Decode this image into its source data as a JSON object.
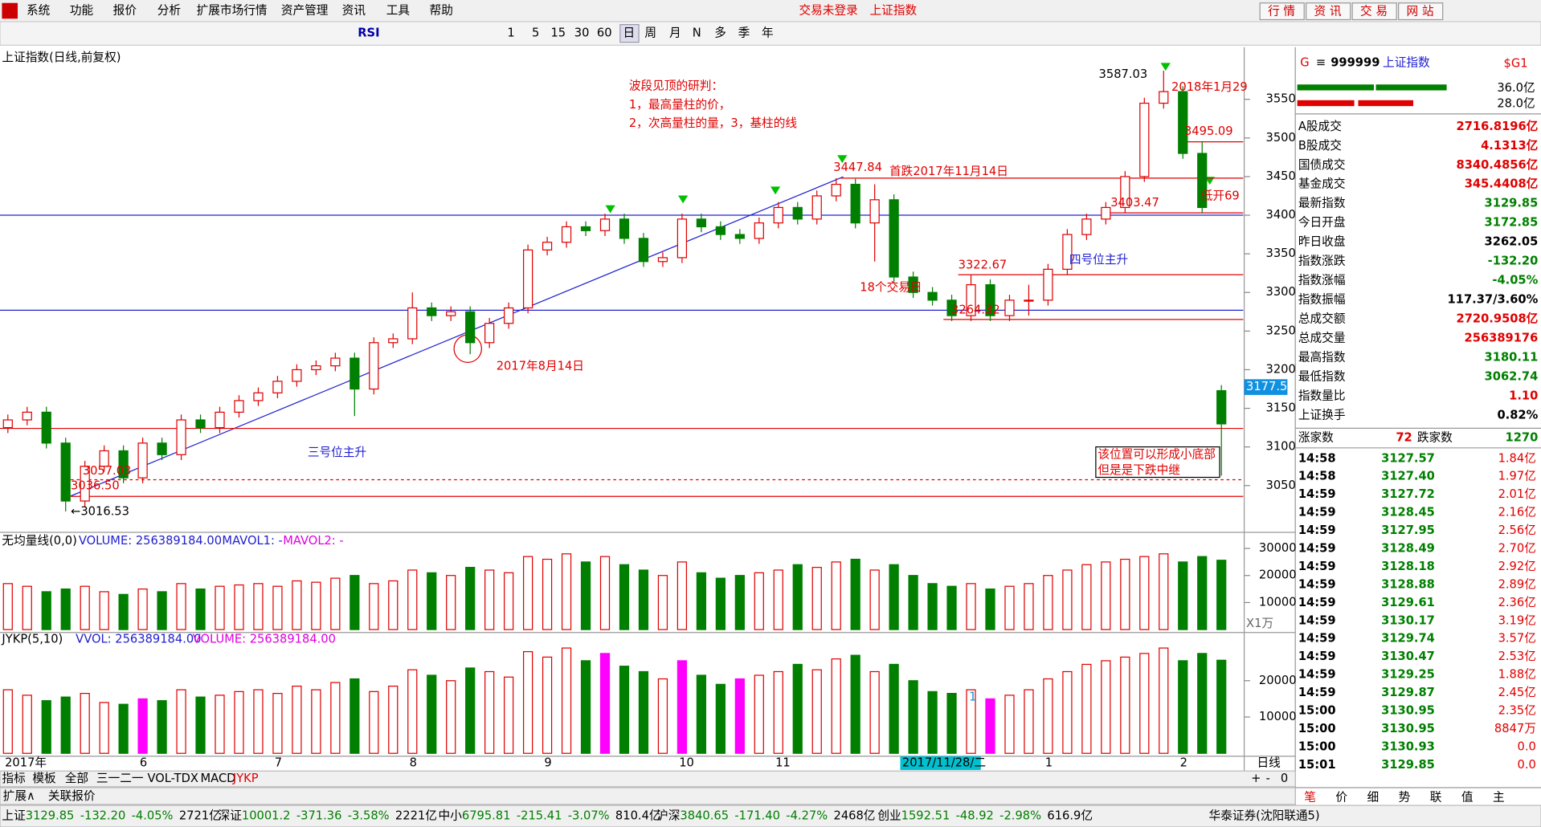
{
  "app": {
    "menu": [
      "系统",
      "功能",
      "报价",
      "分析",
      "扩展市场行情",
      "资产管理",
      "资讯",
      "工具",
      "帮助"
    ],
    "login_status": "交易未登录",
    "active_symbol": "上证指数",
    "top_buttons": [
      "行 情",
      "资 讯",
      "交 易",
      "网 站"
    ],
    "toolbar_label": "RSI",
    "periods": [
      "1",
      "5",
      "15",
      "30",
      "60",
      "日",
      "周",
      "月",
      "N",
      "多",
      "季",
      "年"
    ]
  },
  "chart_data": {
    "type": "candlestick",
    "title": "上证指数(日线,前复权)",
    "ylim": [
      2992,
      3615
    ],
    "yticks": [
      3050,
      3100,
      3150,
      3200,
      3250,
      3300,
      3350,
      3400,
      3450,
      3500,
      3550
    ],
    "up_color": "#e00000",
    "down_color": "#007f00",
    "categories": [
      "2017年",
      null,
      null,
      null,
      null,
      null,
      null,
      "6",
      null,
      null,
      null,
      null,
      null,
      null,
      "7",
      null,
      null,
      null,
      null,
      null,
      null,
      "8",
      null,
      null,
      null,
      null,
      null,
      null,
      "9",
      null,
      null,
      null,
      null,
      null,
      null,
      "10",
      null,
      null,
      null,
      null,
      "11",
      null,
      null,
      null,
      null,
      null,
      null,
      null,
      null,
      null,
      null,
      null,
      null,
      null,
      "1",
      null,
      null,
      null,
      null,
      null,
      null,
      "2",
      null,
      null
    ],
    "ohlc": [
      [
        3125,
        3142,
        3118,
        3135
      ],
      [
        3135,
        3152,
        3128,
        3145
      ],
      [
        3145,
        3152,
        3098,
        3105
      ],
      [
        3105,
        3112,
        3016.53,
        3030
      ],
      [
        3030,
        3082,
        3023,
        3075
      ],
      [
        3075,
        3102,
        3068,
        3095
      ],
      [
        3095,
        3102,
        3053,
        3060
      ],
      [
        3060,
        3112,
        3053,
        3105
      ],
      [
        3105,
        3112,
        3083,
        3090
      ],
      [
        3090,
        3142,
        3083,
        3135
      ],
      [
        3135,
        3142,
        3118,
        3125
      ],
      [
        3125,
        3152,
        3118,
        3145
      ],
      [
        3145,
        3167,
        3138,
        3160
      ],
      [
        3160,
        3177,
        3153,
        3170
      ],
      [
        3170,
        3192,
        3163,
        3185
      ],
      [
        3185,
        3207,
        3178,
        3200
      ],
      [
        3200,
        3212,
        3193,
        3205
      ],
      [
        3205,
        3222,
        3198,
        3215
      ],
      [
        3215,
        3222,
        3140,
        3175
      ],
      [
        3175,
        3242,
        3168,
        3235
      ],
      [
        3235,
        3247,
        3228,
        3240
      ],
      [
        3240,
        3300,
        3233,
        3280
      ],
      [
        3280,
        3287,
        3263,
        3270
      ],
      [
        3270,
        3282,
        3263,
        3275
      ],
      [
        3275,
        3282,
        3220,
        3235
      ],
      [
        3235,
        3267,
        3228,
        3260
      ],
      [
        3260,
        3287,
        3253,
        3280
      ],
      [
        3280,
        3362,
        3273,
        3355
      ],
      [
        3355,
        3372,
        3348,
        3365
      ],
      [
        3365,
        3392,
        3358,
        3385
      ],
      [
        3385,
        3392,
        3373,
        3380
      ],
      [
        3380,
        3402,
        3373,
        3395
      ],
      [
        3395,
        3402,
        3363,
        3370
      ],
      [
        3370,
        3377,
        3333,
        3340
      ],
      [
        3340,
        3352,
        3333,
        3345
      ],
      [
        3345,
        3402,
        3338,
        3395
      ],
      [
        3395,
        3402,
        3378,
        3385
      ],
      [
        3385,
        3392,
        3368,
        3375
      ],
      [
        3375,
        3382,
        3363,
        3370
      ],
      [
        3370,
        3397,
        3363,
        3390
      ],
      [
        3390,
        3417,
        3383,
        3410
      ],
      [
        3410,
        3417,
        3388,
        3395
      ],
      [
        3395,
        3432,
        3388,
        3425
      ],
      [
        3425,
        3447.84,
        3418,
        3440
      ],
      [
        3440,
        3447,
        3383,
        3390
      ],
      [
        3390,
        3440,
        3340,
        3420
      ],
      [
        3420,
        3427,
        3313,
        3320
      ],
      [
        3320,
        3327,
        3293,
        3300
      ],
      [
        3300,
        3307,
        3283,
        3290
      ],
      [
        3290,
        3297,
        3263,
        3270
      ],
      [
        3270,
        3322.67,
        3263,
        3310
      ],
      [
        3310,
        3317,
        3263,
        3270
      ],
      [
        3270,
        3297,
        3263,
        3290
      ],
      [
        3290,
        3310,
        3270,
        3290
      ],
      [
        3290,
        3337,
        3283,
        3330
      ],
      [
        3330,
        3382,
        3323,
        3375
      ],
      [
        3375,
        3402,
        3368,
        3395
      ],
      [
        3395,
        3417,
        3388,
        3410
      ],
      [
        3410,
        3457,
        3403,
        3450
      ],
      [
        3450,
        3552,
        3443,
        3545
      ],
      [
        3545,
        3587.03,
        3538,
        3560
      ],
      [
        3560,
        3567,
        3473,
        3480
      ],
      [
        3480,
        3495.09,
        3403,
        3410
      ],
      [
        3172.85,
        3180.11,
        3062.74,
        3129.85
      ]
    ],
    "levels": [
      {
        "value": 3400,
        "color": "#2020d0"
      },
      {
        "value": 3277,
        "color": "#2020d0"
      },
      {
        "value": 3448,
        "color": "#e00000"
      },
      {
        "value": 3495,
        "color": "#e00000"
      },
      {
        "value": 3403,
        "color": "#e00000"
      },
      {
        "value": 3323,
        "color": "#e00000"
      },
      {
        "value": 3265,
        "color": "#e00000"
      },
      {
        "value": 3124,
        "color": "#e00000"
      },
      {
        "value": 3057.5,
        "color": "#e00000"
      },
      {
        "value": 3036,
        "color": "#e00000"
      }
    ],
    "cursor_value": 3177.5,
    "cursor_date": "2017/11/28/二",
    "annotations": {
      "heading": "波段见顶的研判：",
      "rule1": "1，最高量柱的价，",
      "rule2": "2，次高量柱的量，3，基柱的线",
      "peak": "3587.03",
      "peak_date": "2018年1月29",
      "p3495": "3495.09",
      "p3447": "3447.84",
      "first_drop": "首跌2017年11月14日",
      "p3403": "3403.47",
      "gap": "低开69",
      "rise4": "四号位主升",
      "p3322": "3322.67",
      "days18": "18个交易日",
      "p3264": "3264.32",
      "aug14": "2017年8月14日",
      "rise3": "三号位主升",
      "p3057": "3057.03",
      "p3036": "3036.50",
      "low": "←3016.53",
      "box1": "该位置可以形成小底部",
      "box2": "但是是下跌中继"
    },
    "volume_panel": {
      "label": "无均量线(0,0)",
      "volume": "VOLUME: 256389184.00",
      "mavol1": "MAVOL1: -",
      "mavol2": "MAVOL2: -",
      "unit": "X1万",
      "ylim": [
        0,
        34500
      ],
      "yticks": [
        10000,
        20000,
        30000
      ],
      "values": [
        17000,
        16000,
        14000,
        15000,
        16000,
        14000,
        13000,
        15000,
        14000,
        17000,
        15000,
        16000,
        16500,
        17000,
        16000,
        18000,
        17500,
        19000,
        20000,
        17000,
        18000,
        22000,
        21000,
        20000,
        23000,
        22000,
        21000,
        27000,
        26000,
        28000,
        25000,
        27000,
        24000,
        22000,
        20000,
        25000,
        21000,
        19000,
        20000,
        21000,
        22000,
        24000,
        23000,
        25000,
        26000,
        22000,
        24000,
        20000,
        17000,
        16000,
        17000,
        15000,
        16000,
        17000,
        20000,
        22000,
        24000,
        25000,
        26000,
        27000,
        28000,
        25000,
        27000,
        25638.9
      ]
    },
    "jykp_panel": {
      "label": "JYKP(5,10)",
      "vvol": "VVOL: 256389184.00",
      "volume": "VOLUME: 256389184.00",
      "mark": "1",
      "ylim": [
        0,
        33000
      ],
      "yticks": [
        10000,
        20000
      ],
      "highlight": [
        7,
        31,
        35,
        38,
        51
      ],
      "highlight_color": "#ff00ff",
      "values": [
        17500,
        16000,
        14500,
        15500,
        16500,
        14000,
        13500,
        15000,
        14500,
        17500,
        15500,
        16000,
        17000,
        17500,
        16500,
        18500,
        17500,
        19500,
        20500,
        17000,
        18500,
        23000,
        21500,
        20000,
        23500,
        22500,
        21000,
        28000,
        26500,
        29000,
        25500,
        27500,
        24000,
        22500,
        20500,
        25500,
        21500,
        19000,
        20500,
        21500,
        22500,
        24500,
        23000,
        26000,
        27000,
        22500,
        24500,
        20000,
        17000,
        16500,
        17500,
        15000,
        16000,
        17500,
        20500,
        22500,
        24500,
        25500,
        26500,
        27500,
        29000,
        25500,
        27500,
        25638.9
      ]
    },
    "period_label": "日线",
    "tabs": [
      "指标",
      "模板",
      "全部",
      "三一二一",
      "VOL-TDX",
      "MACD",
      "JYKP"
    ],
    "scroll": [
      "+",
      "-",
      "0"
    ],
    "extra_tabs": [
      "扩展∧",
      "关联报价"
    ]
  },
  "quote_panel": {
    "flag": "G",
    "menu_icon": "≡",
    "code": "999999",
    "name": "上证指数",
    "tag": "$G1",
    "buy_amount": "36.0亿",
    "sell_amount": "28.0亿",
    "rows": [
      {
        "label": "A股成交",
        "value": "2716.8196亿",
        "color": "#e00000"
      },
      {
        "label": "B股成交",
        "value": "4.1313亿",
        "color": "#e00000"
      },
      {
        "label": "国债成交",
        "value": "8340.4856亿",
        "color": "#e00000"
      },
      {
        "label": "基金成交",
        "value": "345.4408亿",
        "color": "#e00000"
      },
      {
        "label": "最新指数",
        "value": "3129.85",
        "color": "#007f00"
      },
      {
        "label": "今日开盘",
        "value": "3172.85",
        "color": "#007f00"
      },
      {
        "label": "昨日收盘",
        "value": "3262.05",
        "color": "#000000"
      },
      {
        "label": "指数涨跌",
        "value": "-132.20",
        "color": "#007f00"
      },
      {
        "label": "指数涨幅",
        "value": "-4.05%",
        "color": "#007f00"
      },
      {
        "label": "指数振幅",
        "value": "117.37/3.60%",
        "color": "#000000"
      },
      {
        "label": "总成交额",
        "value": "2720.9508亿",
        "color": "#e00000"
      },
      {
        "label": "总成交量",
        "value": "256389176",
        "color": "#e00000"
      },
      {
        "label": "最高指数",
        "value": "3180.11",
        "color": "#007f00"
      },
      {
        "label": "最低指数",
        "value": "3062.74",
        "color": "#007f00"
      },
      {
        "label": "指数量比",
        "value": "1.10",
        "color": "#e00000"
      },
      {
        "label": "上证换手",
        "value": "0.82%",
        "color": "#000000"
      }
    ],
    "up_label": "涨家数",
    "up_count": "72",
    "down_label": "跌家数",
    "down_count": "1270",
    "ticks": [
      [
        "14:58",
        "3127.57",
        "1.84亿"
      ],
      [
        "14:58",
        "3127.40",
        "1.97亿"
      ],
      [
        "14:59",
        "3127.72",
        "2.01亿"
      ],
      [
        "14:59",
        "3128.45",
        "2.16亿"
      ],
      [
        "14:59",
        "3127.95",
        "2.56亿"
      ],
      [
        "14:59",
        "3128.49",
        "2.70亿"
      ],
      [
        "14:59",
        "3128.18",
        "2.92亿"
      ],
      [
        "14:59",
        "3128.88",
        "2.89亿"
      ],
      [
        "14:59",
        "3129.61",
        "2.36亿"
      ],
      [
        "14:59",
        "3130.17",
        "3.19亿"
      ],
      [
        "14:59",
        "3129.74",
        "3.57亿"
      ],
      [
        "14:59",
        "3130.47",
        "2.53亿"
      ],
      [
        "14:59",
        "3129.25",
        "1.88亿"
      ],
      [
        "14:59",
        "3129.87",
        "2.45亿"
      ],
      [
        "15:00",
        "3130.95",
        "2.35亿"
      ],
      [
        "15:00",
        "3130.95",
        "8847万"
      ],
      [
        "15:00",
        "3130.93",
        "0.0"
      ],
      [
        "15:01",
        "3129.85",
        "0.0"
      ]
    ],
    "tabs": [
      "笔",
      "价",
      "细",
      "势",
      "联",
      "值",
      "主"
    ]
  },
  "status_bar": {
    "indices": [
      {
        "name": "上证",
        "value": "3129.85",
        "change": "-132.20",
        "pct": "-4.05%",
        "amount": "2721亿"
      },
      {
        "name": "深证",
        "value": "10001.2",
        "change": "-371.36",
        "pct": "-3.58%",
        "amount": "2221亿"
      },
      {
        "name": "中小",
        "value": "6795.81",
        "change": "-215.41",
        "pct": "-3.07%",
        "amount": "810.4亿"
      },
      {
        "name": "沪深",
        "value": "3840.65",
        "change": "-171.40",
        "pct": "-4.27%",
        "amount": "2468亿"
      },
      {
        "name": "创业",
        "value": "1592.51",
        "change": "-48.92",
        "pct": "-2.98%",
        "amount": "616.9亿"
      }
    ],
    "broker": "华泰证券(沈阳联通5)"
  }
}
